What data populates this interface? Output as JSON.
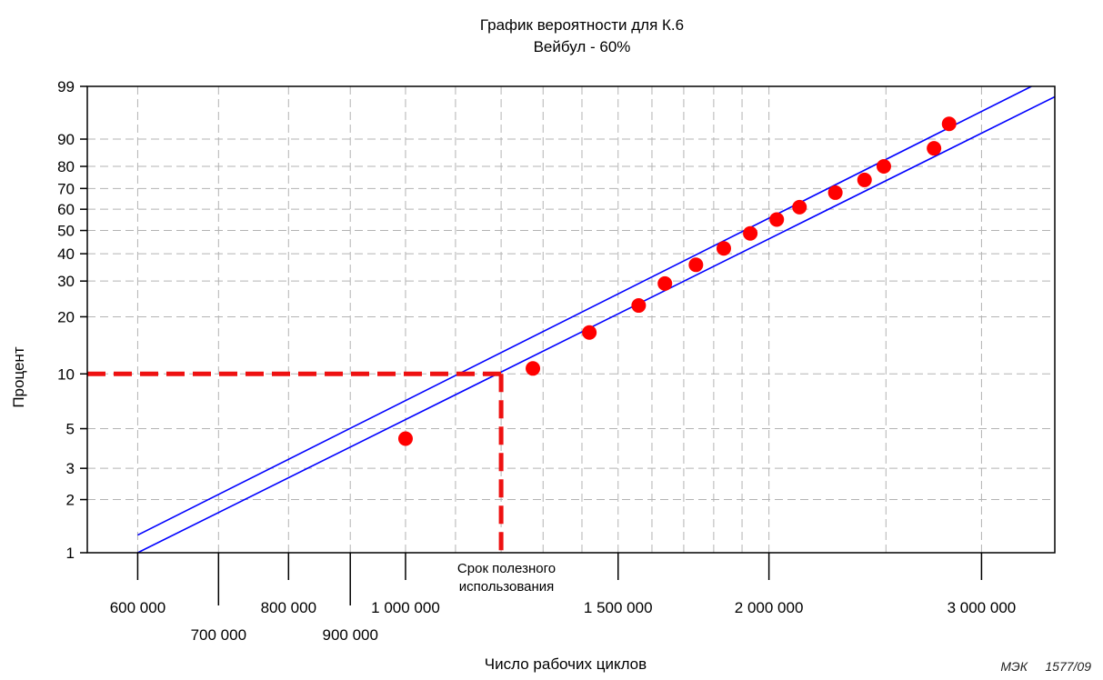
{
  "chart_data": {
    "type": "scatter",
    "title": "График вероятности для К.6",
    "subtitle": "Вейбул - 60%",
    "xlabel": "Число рабочих циклов",
    "ylabel": "Процент",
    "x_scale": "log",
    "y_scale": "weibull",
    "xlim": [
      545000,
      3450000
    ],
    "ylim": [
      1,
      99
    ],
    "grid": true,
    "x_ticks": [
      {
        "value": 600000,
        "label": "600 000",
        "row": 1
      },
      {
        "value": 700000,
        "label": "700 000",
        "row": 2
      },
      {
        "value": 800000,
        "label": "800 000",
        "row": 1
      },
      {
        "value": 900000,
        "label": "900 000",
        "row": 2
      },
      {
        "value": 1000000,
        "label": "1 000 000",
        "row": 1
      },
      {
        "value": 1500000,
        "label": "1 500 000",
        "row": 1
      },
      {
        "value": 2000000,
        "label": "2 000 000",
        "row": 1
      },
      {
        "value": 3000000,
        "label": "3 000 000",
        "row": 1
      }
    ],
    "x_minor_grid": [
      1100000,
      1200000,
      1300000,
      1400000,
      1600000,
      1700000,
      1800000,
      1900000,
      2500000
    ],
    "y_ticks": [
      {
        "value": 1,
        "label": "1"
      },
      {
        "value": 2,
        "label": "2"
      },
      {
        "value": 3,
        "label": "3"
      },
      {
        "value": 5,
        "label": "5"
      },
      {
        "value": 10,
        "label": "10"
      },
      {
        "value": 20,
        "label": "20"
      },
      {
        "value": 30,
        "label": "30"
      },
      {
        "value": 40,
        "label": "40"
      },
      {
        "value": 50,
        "label": "50"
      },
      {
        "value": 60,
        "label": "60"
      },
      {
        "value": 70,
        "label": "70"
      },
      {
        "value": 80,
        "label": "80"
      },
      {
        "value": 90,
        "label": "90"
      },
      {
        "value": 99,
        "label": "99"
      }
    ],
    "points": [
      {
        "x": 1000000,
        "y": 4.4
      },
      {
        "x": 1275000,
        "y": 10.7
      },
      {
        "x": 1420000,
        "y": 16.6
      },
      {
        "x": 1560000,
        "y": 22.8
      },
      {
        "x": 1640000,
        "y": 29.2
      },
      {
        "x": 1740000,
        "y": 35.7
      },
      {
        "x": 1835000,
        "y": 42.2
      },
      {
        "x": 1930000,
        "y": 48.7
      },
      {
        "x": 2030000,
        "y": 55.1
      },
      {
        "x": 2120000,
        "y": 61.0
      },
      {
        "x": 2270000,
        "y": 68.0
      },
      {
        "x": 2400000,
        "y": 74.0
      },
      {
        "x": 2490000,
        "y": 80.0
      },
      {
        "x": 2740000,
        "y": 87.0
      },
      {
        "x": 2820000,
        "y": 94.0
      }
    ],
    "series": [
      {
        "values": [
          {
            "x": 600000,
            "y": 1.26
          },
          {
            "x": 3300000,
            "y": 99
          }
        ]
      },
      {
        "values": [
          {
            "x": 600000,
            "y": 1.0
          },
          {
            "x": 3450000,
            "y": 98.2
          }
        ]
      }
    ],
    "reference": {
      "x": 1200000,
      "y": 10,
      "label_line1": "Срок полезного",
      "label_line2": "использования"
    },
    "colors": {
      "points": "#ff0000",
      "lines": "#0000ff",
      "reference": "#ee1111",
      "grid": "#b3b3b3"
    },
    "source_label": "МЭК     1577/09"
  }
}
